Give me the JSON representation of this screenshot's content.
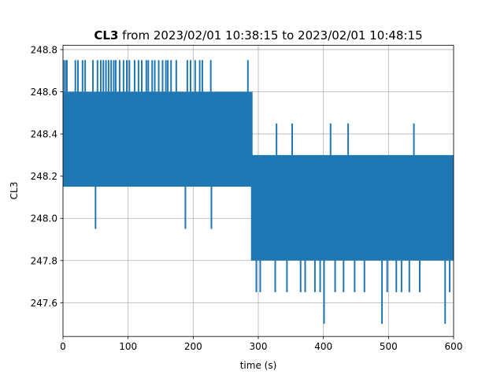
{
  "chart_data": {
    "type": "line",
    "title_bold": "CL3",
    "title_rest": " from 2023/02/01 10:38:15 to 2023/02/01 10:48:15",
    "xlabel": "time (s)",
    "ylabel": "CL3",
    "xlim": [
      0,
      600
    ],
    "ylim": [
      247.44,
      248.82
    ],
    "x_ticks": [
      0,
      100,
      200,
      300,
      400,
      500,
      600
    ],
    "y_ticks": [
      247.6,
      247.8,
      248.0,
      248.2,
      248.4,
      248.6,
      248.8
    ],
    "grid": true,
    "color": "#1f77b4",
    "series": [
      {
        "segments": [
          {
            "x_start": 0,
            "x_end": 290,
            "low": 248.15,
            "high": 248.6
          },
          {
            "x_start": 290,
            "x_end": 600,
            "low": 247.8,
            "high": 248.3
          }
        ],
        "spikes_up": [
          {
            "x": 2,
            "y": 248.75
          },
          {
            "x": 5,
            "y": 248.75
          },
          {
            "x": 6,
            "y": 248.75
          },
          {
            "x": 19,
            "y": 248.75
          },
          {
            "x": 23,
            "y": 248.75
          },
          {
            "x": 30,
            "y": 248.75
          },
          {
            "x": 34,
            "y": 248.75
          },
          {
            "x": 46,
            "y": 248.75
          },
          {
            "x": 53,
            "y": 248.75
          },
          {
            "x": 58,
            "y": 248.75
          },
          {
            "x": 62,
            "y": 248.75
          },
          {
            "x": 66,
            "y": 248.75
          },
          {
            "x": 70,
            "y": 248.75
          },
          {
            "x": 74,
            "y": 248.75
          },
          {
            "x": 78,
            "y": 248.75
          },
          {
            "x": 81,
            "y": 248.75
          },
          {
            "x": 87,
            "y": 248.75
          },
          {
            "x": 93,
            "y": 248.75
          },
          {
            "x": 98,
            "y": 248.75
          },
          {
            "x": 102,
            "y": 248.75
          },
          {
            "x": 110,
            "y": 248.75
          },
          {
            "x": 116,
            "y": 248.75
          },
          {
            "x": 121,
            "y": 248.75
          },
          {
            "x": 128,
            "y": 248.75
          },
          {
            "x": 131,
            "y": 248.75
          },
          {
            "x": 137,
            "y": 248.75
          },
          {
            "x": 141,
            "y": 248.75
          },
          {
            "x": 147,
            "y": 248.75
          },
          {
            "x": 153,
            "y": 248.75
          },
          {
            "x": 158,
            "y": 248.75
          },
          {
            "x": 161,
            "y": 248.75
          },
          {
            "x": 166,
            "y": 248.75
          },
          {
            "x": 174,
            "y": 248.75
          },
          {
            "x": 191,
            "y": 248.75
          },
          {
            "x": 196,
            "y": 248.75
          },
          {
            "x": 203,
            "y": 248.75
          },
          {
            "x": 210,
            "y": 248.75
          },
          {
            "x": 214,
            "y": 248.75
          },
          {
            "x": 227,
            "y": 248.75
          },
          {
            "x": 284,
            "y": 248.75
          },
          {
            "x": 328,
            "y": 248.45
          },
          {
            "x": 352,
            "y": 248.45
          },
          {
            "x": 411,
            "y": 248.45
          },
          {
            "x": 438,
            "y": 248.45
          },
          {
            "x": 539,
            "y": 248.45
          }
        ],
        "spikes_down": [
          {
            "x": 50,
            "y": 247.95
          },
          {
            "x": 188,
            "y": 247.95
          },
          {
            "x": 228,
            "y": 247.95
          },
          {
            "x": 297,
            "y": 247.65
          },
          {
            "x": 303,
            "y": 247.65
          },
          {
            "x": 326,
            "y": 247.65
          },
          {
            "x": 344,
            "y": 247.65
          },
          {
            "x": 365,
            "y": 247.65
          },
          {
            "x": 372,
            "y": 247.65
          },
          {
            "x": 387,
            "y": 247.65
          },
          {
            "x": 395,
            "y": 247.65
          },
          {
            "x": 401,
            "y": 247.5
          },
          {
            "x": 418,
            "y": 247.65
          },
          {
            "x": 431,
            "y": 247.65
          },
          {
            "x": 448,
            "y": 247.65
          },
          {
            "x": 463,
            "y": 247.65
          },
          {
            "x": 490,
            "y": 247.5
          },
          {
            "x": 498,
            "y": 247.65
          },
          {
            "x": 512,
            "y": 247.65
          },
          {
            "x": 520,
            "y": 247.65
          },
          {
            "x": 532,
            "y": 247.65
          },
          {
            "x": 548,
            "y": 247.65
          },
          {
            "x": 587,
            "y": 247.5
          },
          {
            "x": 594,
            "y": 247.65
          }
        ]
      }
    ]
  }
}
